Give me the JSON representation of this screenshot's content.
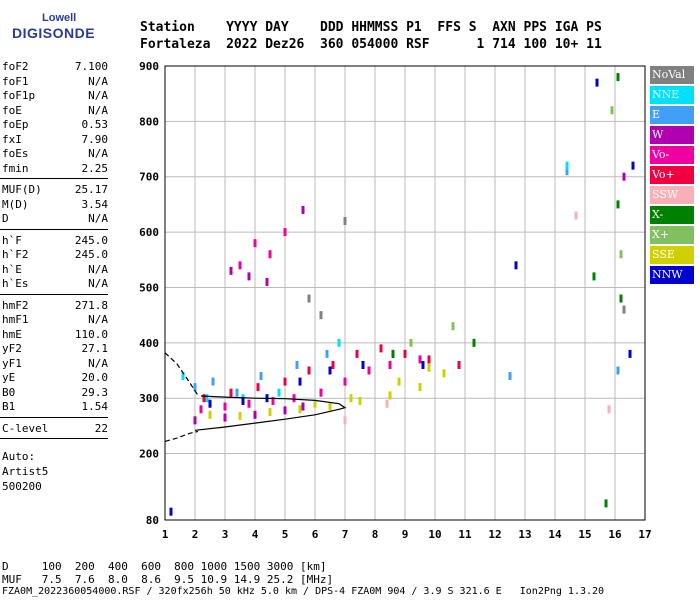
{
  "logo": {
    "line1": "Lowell",
    "line2": "DIGISONDE"
  },
  "header": {
    "line1": "Station    YYYY DAY    DDD HHMMSS P1  FFS S  AXN PPS IGA PS",
    "line2": "Fortaleza  2022 Dez26  360 054000 RSF      1 714 100 10+ 11"
  },
  "params_group1": [
    {
      "k": "foF2",
      "v": "7.100"
    },
    {
      "k": "foF1",
      "v": "N/A"
    },
    {
      "k": "foF1p",
      "v": "N/A"
    },
    {
      "k": "foE",
      "v": "N/A"
    },
    {
      "k": "foEp",
      "v": "0.53"
    },
    {
      "k": "fxI",
      "v": "7.90"
    },
    {
      "k": "foEs",
      "v": "N/A"
    },
    {
      "k": "fmin",
      "v": "2.25"
    }
  ],
  "params_group2": [
    {
      "k": "MUF(D)",
      "v": "25.17"
    },
    {
      "k": "M(D)",
      "v": "3.54"
    },
    {
      "k": "D",
      "v": "N/A"
    }
  ],
  "params_group3": [
    {
      "k": "h`F",
      "v": "245.0"
    },
    {
      "k": "h`F2",
      "v": "245.0"
    },
    {
      "k": "h`E",
      "v": "N/A"
    },
    {
      "k": "h`Es",
      "v": "N/A"
    }
  ],
  "params_group4": [
    {
      "k": "hmF2",
      "v": "271.8"
    },
    {
      "k": "hmF1",
      "v": "N/A"
    },
    {
      "k": "hmE",
      "v": "110.0"
    },
    {
      "k": "yF2",
      "v": "27.1"
    },
    {
      "k": "yF1",
      "v": "N/A"
    },
    {
      "k": "yE",
      "v": "20.0"
    },
    {
      "k": "B0",
      "v": "29.3"
    },
    {
      "k": "B1",
      "v": "1.54"
    }
  ],
  "params_group5": [
    {
      "k": "C-level",
      "v": "22"
    }
  ],
  "auto": [
    "Auto:",
    "Artist5",
    "500200"
  ],
  "legend": [
    {
      "label": "NoVal",
      "color": "#808080"
    },
    {
      "label": "NNE",
      "color": "#00e0f8"
    },
    {
      "label": "E",
      "color": "#40a0f8"
    },
    {
      "label": "W",
      "color": "#b000b0"
    },
    {
      "label": "Vo-",
      "color": "#f000a0"
    },
    {
      "label": "Vo+",
      "color": "#f00040"
    },
    {
      "label": "SSW",
      "color": "#f8b0b8"
    },
    {
      "label": "X-",
      "color": "#008000"
    },
    {
      "label": "X+",
      "color": "#80c060"
    },
    {
      "label": "SSE",
      "color": "#d0d000"
    },
    {
      "label": "NNW",
      "color": "#0000d0"
    }
  ],
  "footer": {
    "line1": "D     100  200  400  600  800 1000 1500 3000 [km]",
    "line2": "MUF   7.5  7.6  8.0  8.6  9.5 10.9 14.9 25.2 [MHz]",
    "line3": "FZA0M_2022360054000.RSF / 320fx256h 50 kHz 5.0 km / DPS-4 FZA0M 904 / 3.9 S 321.6 E   Ion2Png 1.3.20"
  },
  "chart_data": {
    "type": "scatter",
    "xlim": [
      1,
      17
    ],
    "ylim": [
      80,
      900
    ],
    "x_ticks": [
      1,
      2,
      3,
      4,
      5,
      6,
      7,
      8,
      9,
      10,
      11,
      12,
      13,
      14,
      15,
      16,
      17
    ],
    "y_ticks": [
      80,
      200,
      300,
      400,
      500,
      600,
      700,
      800,
      900
    ],
    "grid": true,
    "legend_position": "right",
    "series": [
      {
        "color": "#d0d000",
        "points": [
          [
            2.5,
            270
          ],
          [
            3.5,
            268
          ],
          [
            4.5,
            275
          ],
          [
            5.5,
            280
          ],
          [
            6.5,
            285
          ],
          [
            7.5,
            295
          ],
          [
            8.5,
            305
          ],
          [
            9.5,
            320
          ],
          [
            10.3,
            345
          ],
          [
            7.2,
            300
          ],
          [
            8.8,
            330
          ],
          [
            9.8,
            355
          ],
          [
            6,
            290
          ]
        ]
      },
      {
        "color": "#f000a0",
        "points": [
          [
            2.2,
            280
          ],
          [
            3,
            285
          ],
          [
            3.8,
            290
          ],
          [
            4.6,
            295
          ],
          [
            5.3,
            300
          ],
          [
            6.2,
            310
          ],
          [
            7,
            330
          ],
          [
            7.8,
            350
          ],
          [
            8.5,
            360
          ],
          [
            9.5,
            370
          ],
          [
            4,
            580
          ],
          [
            4.5,
            560
          ],
          [
            3.5,
            540
          ],
          [
            5,
            600
          ]
        ]
      },
      {
        "color": "#f00040",
        "points": [
          [
            2.3,
            300
          ],
          [
            3.2,
            310
          ],
          [
            4.1,
            320
          ],
          [
            5,
            330
          ],
          [
            5.8,
            350
          ],
          [
            6.6,
            360
          ],
          [
            7.4,
            380
          ],
          [
            8.2,
            390
          ],
          [
            9,
            380
          ],
          [
            9.8,
            370
          ],
          [
            10.8,
            360
          ]
        ]
      },
      {
        "color": "#b000b0",
        "points": [
          [
            2,
            260
          ],
          [
            3,
            265
          ],
          [
            4,
            270
          ],
          [
            5,
            278
          ],
          [
            5.6,
            285
          ],
          [
            3.2,
            530
          ],
          [
            3.8,
            520
          ],
          [
            4.4,
            510
          ],
          [
            5.6,
            640
          ],
          [
            16.3,
            700
          ]
        ]
      },
      {
        "color": "#40a0f8",
        "points": [
          [
            2,
            320
          ],
          [
            2.6,
            330
          ],
          [
            3.4,
            310
          ],
          [
            4.2,
            340
          ],
          [
            5.4,
            360
          ],
          [
            6.4,
            380
          ],
          [
            12.5,
            340
          ],
          [
            14.4,
            710
          ],
          [
            16.1,
            350
          ]
        ]
      },
      {
        "color": "#00e0f8",
        "points": [
          [
            1.6,
            340
          ],
          [
            2.4,
            300
          ],
          [
            3.6,
            300
          ],
          [
            4.8,
            310
          ],
          [
            6.8,
            400
          ],
          [
            14.4,
            720
          ]
        ]
      },
      {
        "color": "#0000d0",
        "points": [
          [
            1.2,
            95
          ],
          [
            2.5,
            290
          ],
          [
            3.6,
            295
          ],
          [
            4.4,
            300
          ],
          [
            5.5,
            330
          ],
          [
            6.5,
            350
          ],
          [
            7.6,
            360
          ],
          [
            8.6,
            380
          ],
          [
            9.6,
            360
          ],
          [
            12.7,
            540
          ],
          [
            15.4,
            870
          ],
          [
            16.5,
            380
          ],
          [
            16.6,
            720
          ]
        ]
      },
      {
        "color": "#008000",
        "points": [
          [
            8.6,
            380
          ],
          [
            11.3,
            400
          ],
          [
            15.3,
            520
          ],
          [
            15.7,
            110
          ],
          [
            16.1,
            880
          ],
          [
            16.1,
            650
          ],
          [
            16.2,
            480
          ]
        ]
      },
      {
        "color": "#80c060",
        "points": [
          [
            9.2,
            400
          ],
          [
            10.6,
            430
          ],
          [
            15.9,
            820
          ],
          [
            16.2,
            560
          ]
        ]
      },
      {
        "color": "#f8b0b8",
        "points": [
          [
            7,
            260
          ],
          [
            8.4,
            290
          ],
          [
            14.7,
            630
          ],
          [
            15.8,
            280
          ]
        ]
      },
      {
        "color": "#808080",
        "points": [
          [
            5.8,
            480
          ],
          [
            6.2,
            450
          ],
          [
            7,
            620
          ],
          [
            16.3,
            460
          ]
        ]
      }
    ],
    "curves": [
      {
        "style": "solid",
        "points": [
          [
            2,
            242
          ],
          [
            3,
            248
          ],
          [
            4,
            255
          ],
          [
            5,
            262
          ],
          [
            6,
            270
          ],
          [
            6.8,
            280
          ],
          [
            7,
            283
          ],
          [
            6.8,
            290
          ],
          [
            6,
            296
          ],
          [
            5,
            299
          ],
          [
            4,
            300
          ],
          [
            3,
            302
          ],
          [
            2.2,
            304
          ]
        ]
      },
      {
        "style": "dashed",
        "points": [
          [
            1,
            382
          ],
          [
            1.4,
            362
          ],
          [
            1.8,
            330
          ],
          [
            2.1,
            305
          ]
        ]
      },
      {
        "style": "dashed",
        "points": [
          [
            1,
            222
          ],
          [
            1.4,
            228
          ],
          [
            1.8,
            236
          ],
          [
            2.1,
            240
          ]
        ]
      }
    ]
  }
}
